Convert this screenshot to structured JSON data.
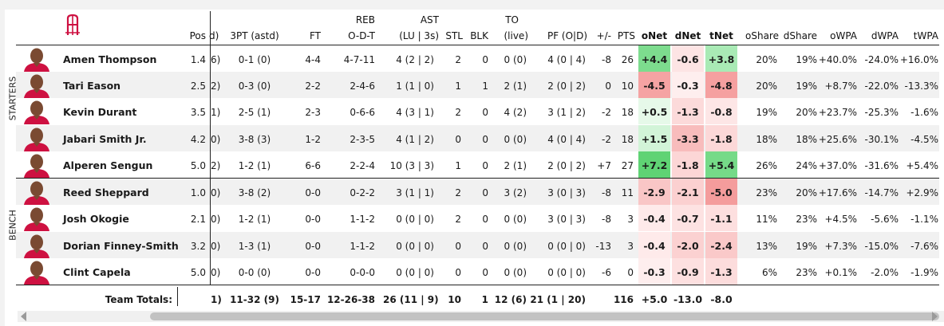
{
  "team": {
    "logo_icon": "houston-rockets-logo-icon",
    "logo_color": "#ce1141"
  },
  "side_labels": {
    "starters": "STARTERS",
    "bench": "BENCH"
  },
  "columns": {
    "pos": "Pos",
    "fg_clipped": "d)",
    "tpt": "3PT (astd)",
    "ft": "FT",
    "reb_top": "REB",
    "reb_bottom": "O-D-T",
    "ast_top": "AST",
    "ast_bottom": "(LU | 3s)",
    "stl": "STL",
    "blk": "BLK",
    "to_top": "TO",
    "to_bottom": "(live)",
    "pf": "PF (O|D)",
    "pm": "+/-",
    "pts": "PTS",
    "onet": "oNet",
    "dnet": "dNet",
    "tnet": "tNet",
    "oshare": "oShare",
    "dshare": "dShare",
    "owpa": "oWPA",
    "dwpa": "dWPA",
    "twpa": "tWPA"
  },
  "players": [
    {
      "name": "Amen Thompson",
      "pos": "1.4",
      "fg": "6)",
      "tpt": "0-1 (0)",
      "ft": "4-4",
      "reb": "4-7-11",
      "ast": "4 (2 | 2)",
      "stl": "2",
      "blk": "0",
      "to": "0 (0)",
      "pf": "4 (0 | 4)",
      "pm": "-8",
      "pts": "26",
      "onet": "+4.4",
      "dnet": "-0.6",
      "tnet": "+3.8",
      "oshare": "20%",
      "dshare": "19%",
      "owpa": "+40.0%",
      "dwpa": "-24.0%",
      "twpa": "+16.0%",
      "onet_bg": "#7ddc8e",
      "dnet_bg": "#fde4e4",
      "tnet_bg": "#a9eab5"
    },
    {
      "name": "Tari Eason",
      "pos": "2.5",
      "fg": "2)",
      "tpt": "0-3 (0)",
      "ft": "2-2",
      "reb": "2-4-6",
      "ast": "1 (1 | 0)",
      "stl": "1",
      "blk": "1",
      "to": "2 (1)",
      "pf": "2 (0 | 2)",
      "pm": "0",
      "pts": "10",
      "onet": "-4.5",
      "dnet": "-0.3",
      "tnet": "-4.8",
      "oshare": "20%",
      "dshare": "19%",
      "owpa": "+8.7%",
      "dwpa": "-22.0%",
      "twpa": "-13.3%",
      "onet_bg": "#f5a3a3",
      "dnet_bg": "#feeeee",
      "tnet_bg": "#f5a0a0"
    },
    {
      "name": "Kevin Durant",
      "pos": "3.5",
      "fg": "1)",
      "tpt": "2-5 (1)",
      "ft": "2-3",
      "reb": "0-6-6",
      "ast": "4 (3 | 1)",
      "stl": "2",
      "blk": "0",
      "to": "4 (2)",
      "pf": "3 (1 | 2)",
      "pm": "-2",
      "pts": "18",
      "onet": "+0.5",
      "dnet": "-1.3",
      "tnet": "-0.8",
      "oshare": "19%",
      "dshare": "20%",
      "owpa": "+23.7%",
      "dwpa": "-25.3%",
      "twpa": "-1.6%",
      "onet_bg": "#e6f9e9",
      "dnet_bg": "#fcdada",
      "tnet_bg": "#fde6e6"
    },
    {
      "name": "Jabari Smith Jr.",
      "pos": "4.2",
      "fg": "0)",
      "tpt": "3-8 (3)",
      "ft": "1-2",
      "reb": "2-3-5",
      "ast": "4 (1 | 2)",
      "stl": "0",
      "blk": "0",
      "to": "0 (0)",
      "pf": "4 (0 | 4)",
      "pm": "-2",
      "pts": "18",
      "onet": "+1.5",
      "dnet": "-3.3",
      "tnet": "-1.8",
      "oshare": "18%",
      "dshare": "18%",
      "owpa": "+25.6%",
      "dwpa": "-30.1%",
      "twpa": "-4.5%",
      "onet_bg": "#d2f4d8",
      "dnet_bg": "#f8bcbc",
      "tnet_bg": "#fcd8d8"
    },
    {
      "name": "Alperen Sengun",
      "pos": "5.0",
      "fg": "2)",
      "tpt": "1-2 (1)",
      "ft": "6-6",
      "reb": "2-2-4",
      "ast": "10 (3 | 3)",
      "stl": "1",
      "blk": "0",
      "to": "2 (1)",
      "pf": "2 (0 | 2)",
      "pm": "+7",
      "pts": "27",
      "onet": "+7.2",
      "dnet": "-1.8",
      "tnet": "+5.4",
      "oshare": "26%",
      "dshare": "24%",
      "owpa": "+37.0%",
      "dwpa": "-31.6%",
      "twpa": "+5.4%",
      "onet_bg": "#5fd374",
      "dnet_bg": "#fcd6d6",
      "tnet_bg": "#76da88"
    },
    {
      "name": "Reed Sheppard",
      "pos": "1.0",
      "fg": "0)",
      "tpt": "3-8 (2)",
      "ft": "0-0",
      "reb": "0-2-2",
      "ast": "3 (1 | 1)",
      "stl": "2",
      "blk": "0",
      "to": "3 (2)",
      "pf": "3 (0 | 3)",
      "pm": "-8",
      "pts": "11",
      "onet": "-2.9",
      "dnet": "-2.1",
      "tnet": "-5.0",
      "oshare": "23%",
      "dshare": "20%",
      "owpa": "+17.6%",
      "dwpa": "-14.7%",
      "twpa": "+2.9%",
      "onet_bg": "#f9c6c6",
      "dnet_bg": "#fbd0d0",
      "tnet_bg": "#f49c9c"
    },
    {
      "name": "Josh Okogie",
      "pos": "2.1",
      "fg": "0)",
      "tpt": "1-2 (1)",
      "ft": "0-0",
      "reb": "1-1-2",
      "ast": "0 (0 | 0)",
      "stl": "2",
      "blk": "0",
      "to": "0 (0)",
      "pf": "3 (0 | 3)",
      "pm": "-8",
      "pts": "3",
      "onet": "-0.4",
      "dnet": "-0.7",
      "tnet": "-1.1",
      "oshare": "11%",
      "dshare": "23%",
      "owpa": "+4.5%",
      "dwpa": "-5.6%",
      "twpa": "-1.1%",
      "onet_bg": "#feeaea",
      "dnet_bg": "#fde2e2",
      "tnet_bg": "#fddfdf"
    },
    {
      "name": "Dorian Finney-Smith",
      "pos": "3.2",
      "fg": "0)",
      "tpt": "1-3 (1)",
      "ft": "0-0",
      "reb": "1-1-2",
      "ast": "0 (0 | 0)",
      "stl": "0",
      "blk": "0",
      "to": "0 (0)",
      "pf": "0 (0 | 0)",
      "pm": "-13",
      "pts": "3",
      "onet": "-0.4",
      "dnet": "-2.0",
      "tnet": "-2.4",
      "oshare": "13%",
      "dshare": "19%",
      "owpa": "+7.3%",
      "dwpa": "-15.0%",
      "twpa": "-7.6%",
      "onet_bg": "#feeaea",
      "dnet_bg": "#fbd1d1",
      "tnet_bg": "#fac9c9"
    },
    {
      "name": "Clint Capela",
      "pos": "5.0",
      "fg": "0)",
      "tpt": "0-0 (0)",
      "ft": "0-0",
      "reb": "0-0-0",
      "ast": "0 (0 | 0)",
      "stl": "0",
      "blk": "0",
      "to": "0 (0)",
      "pf": "0 (0 | 0)",
      "pm": "-6",
      "pts": "0",
      "onet": "-0.3",
      "dnet": "-0.9",
      "tnet": "-1.3",
      "oshare": "6%",
      "dshare": "23%",
      "owpa": "+0.1%",
      "dwpa": "-2.0%",
      "twpa": "-1.9%",
      "onet_bg": "#feeeee",
      "dnet_bg": "#fde0e0",
      "tnet_bg": "#fcdcdc"
    }
  ],
  "totals": {
    "label": "Team Totals:",
    "fg": "1)",
    "tpt": "11-32 (9)",
    "ft": "15-17",
    "reb": "12-26-38",
    "ast": "26 (11 | 9)",
    "stl": "10",
    "blk": "1",
    "to": "12 (6)",
    "pf": "21 (1 | 20)",
    "pts": "116",
    "onet": "+5.0",
    "dnet": "-13.0",
    "tnet": "-8.0"
  }
}
